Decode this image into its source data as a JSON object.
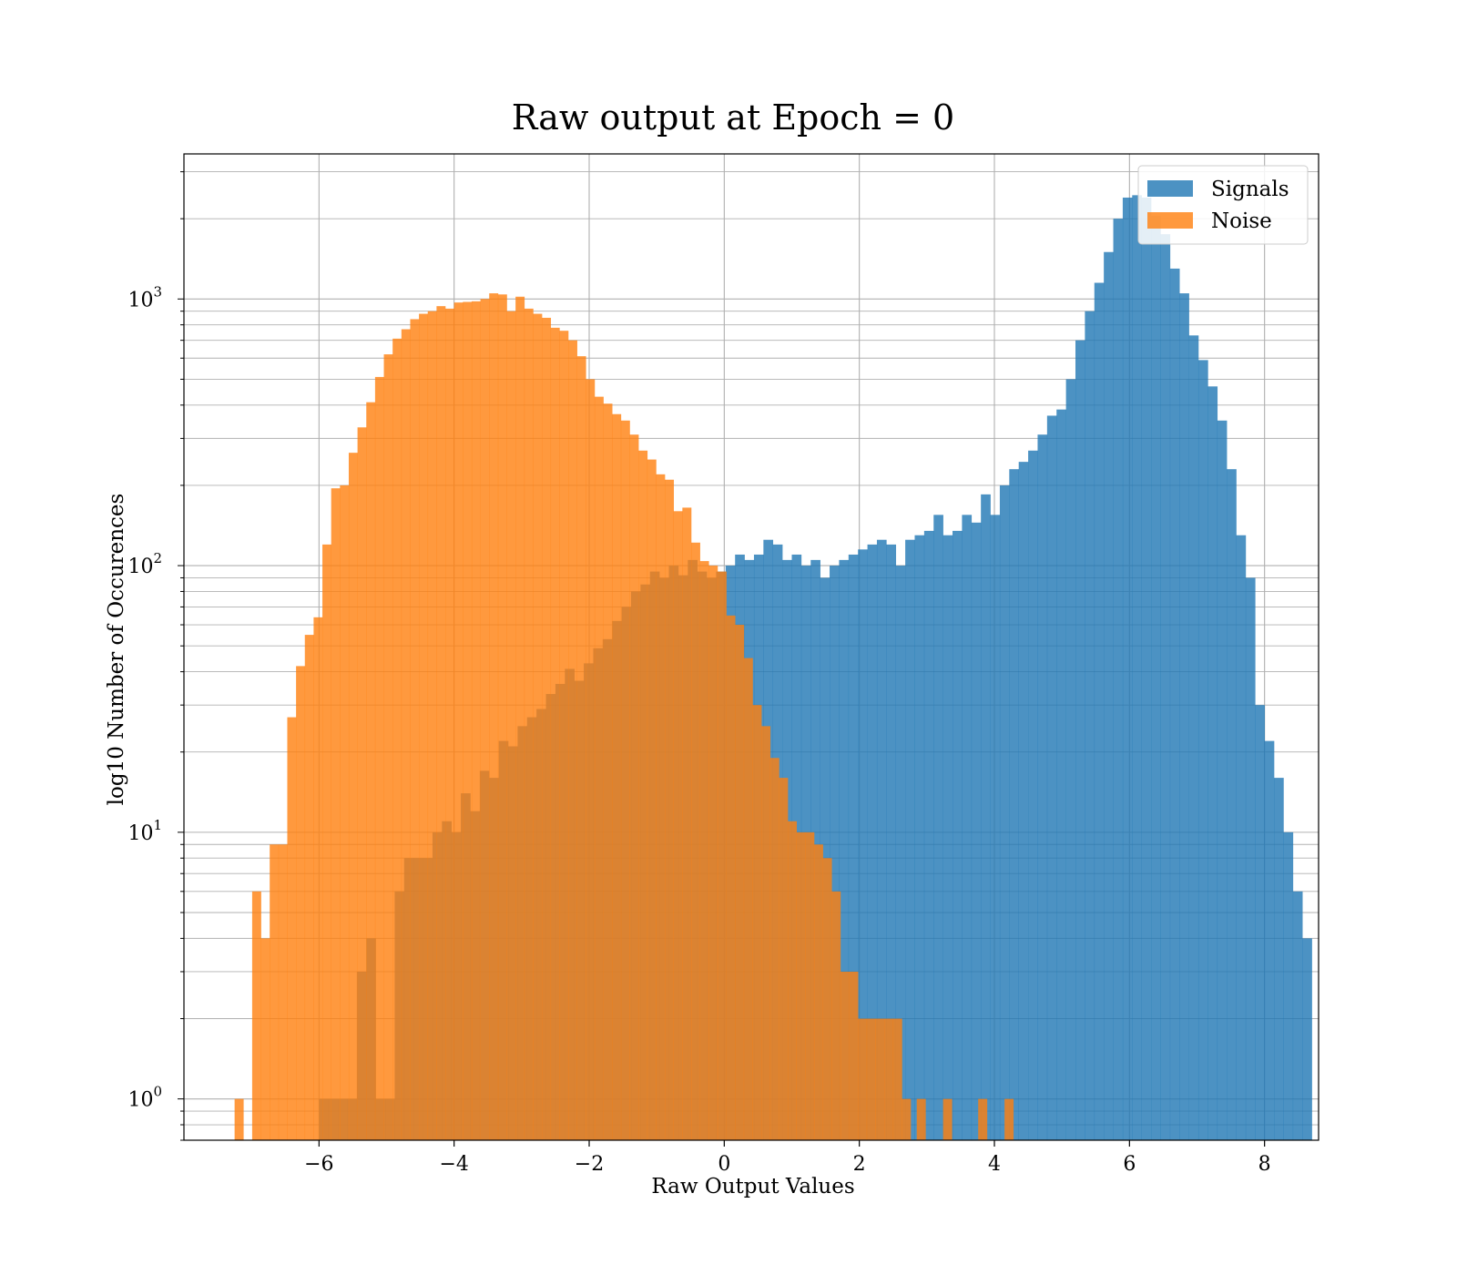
{
  "chart_data": {
    "type": "bar",
    "subtype": "overlapping-histogram",
    "title": "Raw output at Epoch = 0",
    "xlabel": "Raw Output Values",
    "ylabel": "log10 Number of Occurences",
    "xlim": [
      -8.0,
      8.8
    ],
    "ylim": [
      0.7,
      3500
    ],
    "yscale": "log",
    "grid": true,
    "grid_minor": true,
    "legend_position": "top-right",
    "xticks": [
      -6,
      -4,
      -2,
      0,
      2,
      4,
      6,
      8
    ],
    "xtick_labels": [
      "−6",
      "−4",
      "−2",
      "0",
      "2",
      "4",
      "6",
      "8"
    ],
    "yticks": [
      {
        "value": 1,
        "base": "10",
        "exp": "0"
      },
      {
        "value": 10,
        "base": "10",
        "exp": "1"
      },
      {
        "value": 100,
        "base": "10",
        "exp": "2"
      },
      {
        "value": 1000,
        "base": "10",
        "exp": "3"
      }
    ],
    "series": [
      {
        "name": "Signals",
        "color": "#1f77b4",
        "opacity": 0.8,
        "bin_start": -6.0,
        "bin_width": 0.14,
        "values": [
          1,
          1,
          1,
          1,
          3,
          4,
          1,
          1,
          6,
          8,
          8,
          8,
          10,
          11,
          10,
          14,
          12,
          17,
          16,
          22,
          21,
          25,
          27,
          29,
          33,
          36,
          41,
          37,
          43,
          49,
          53,
          62,
          70,
          80,
          85,
          95,
          90,
          100,
          92,
          105,
          95,
          90,
          95,
          100,
          110,
          105,
          110,
          125,
          120,
          105,
          110,
          100,
          105,
          90,
          100,
          105,
          110,
          115,
          120,
          125,
          120,
          100,
          125,
          130,
          135,
          155,
          130,
          135,
          155,
          145,
          185,
          155,
          200,
          230,
          245,
          270,
          310,
          365,
          385,
          500,
          700,
          900,
          1150,
          1500,
          2000,
          2400,
          2450,
          2400,
          2050,
          1750,
          1300,
          1050,
          730,
          590,
          470,
          350,
          230,
          130,
          90,
          30,
          22,
          16,
          10,
          6,
          4
        ]
      },
      {
        "name": "Noise",
        "color": "#ff7f0e",
        "opacity": 0.8,
        "bin_start": -7.25,
        "bin_width": 0.13,
        "values": [
          1,
          0,
          6,
          4,
          9,
          9,
          27,
          42,
          55,
          64,
          120,
          195,
          200,
          265,
          330,
          410,
          510,
          620,
          710,
          770,
          840,
          880,
          900,
          940,
          920,
          970,
          975,
          980,
          1000,
          1050,
          1040,
          900,
          1020,
          920,
          880,
          850,
          780,
          760,
          700,
          610,
          500,
          430,
          405,
          370,
          350,
          310,
          270,
          250,
          220,
          210,
          160,
          165,
          122,
          104,
          100,
          95,
          65,
          60,
          45,
          30,
          25,
          19,
          16,
          11,
          10,
          10,
          9,
          8,
          6,
          3,
          3,
          2,
          2,
          2,
          2,
          2,
          1
        ]
      },
      {
        "name": "",
        "color": "#ff7f0e",
        "opacity": 0.8,
        "bin_start": 2.85,
        "bin_width": 0.13,
        "values": [
          1,
          0,
          0,
          1,
          0,
          0,
          0,
          1,
          0,
          0,
          1
        ]
      }
    ]
  }
}
